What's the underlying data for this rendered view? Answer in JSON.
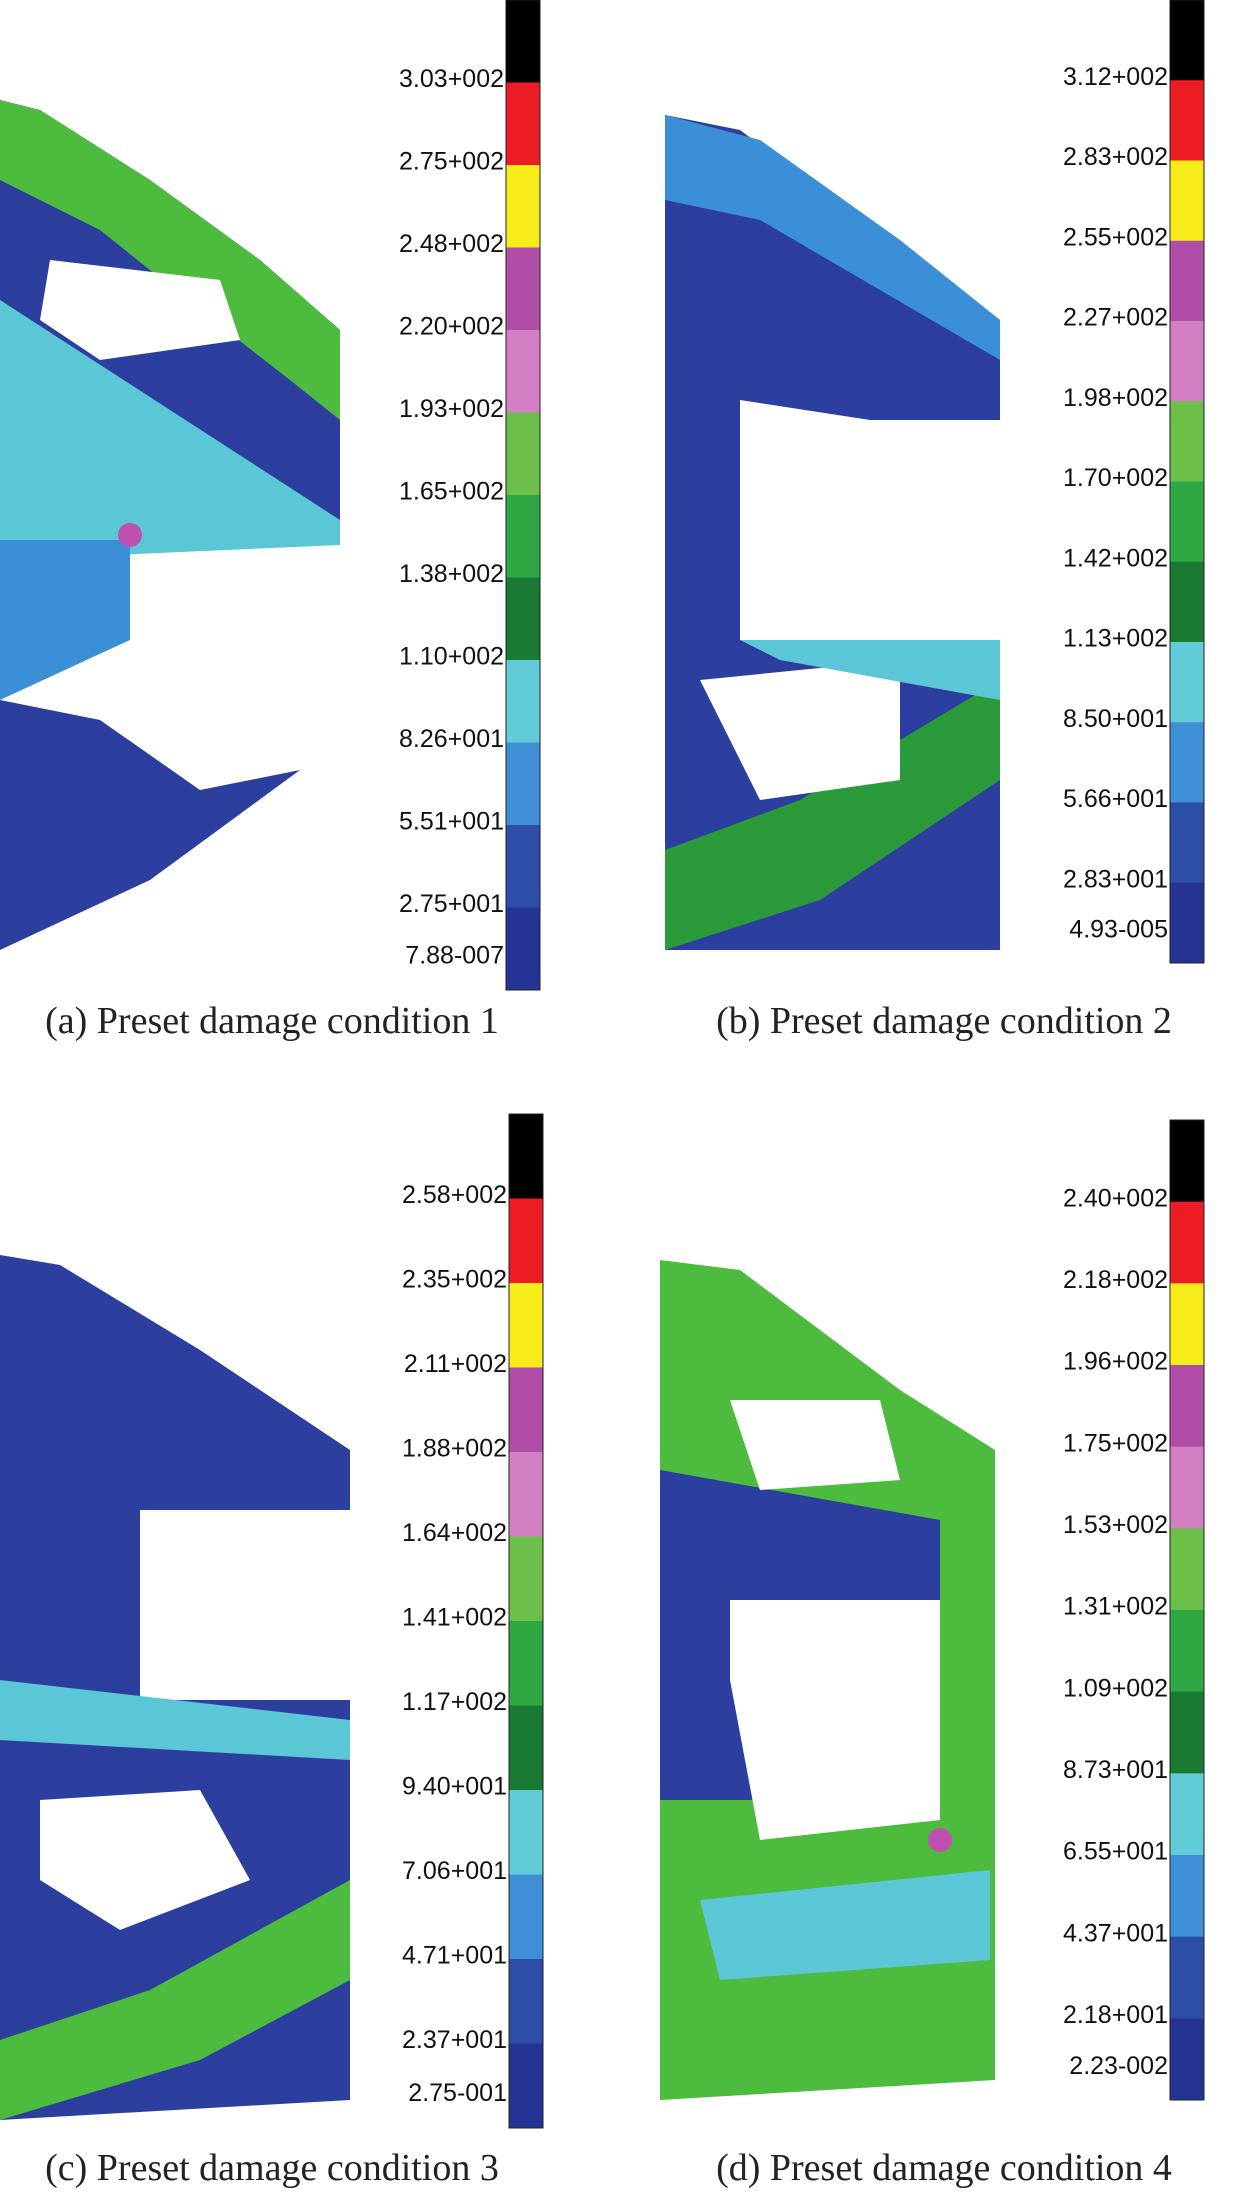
{
  "panels": [
    {
      "caption": "(a) Preset damage condition 1",
      "colorbar_labels": [
        "3.03+002",
        "2.75+002",
        "2.48+002",
        "2.20+002",
        "1.93+002",
        "1.65+002",
        "1.38+002",
        "1.10+002",
        "8.26+001",
        "5.51+001",
        "2.75+001",
        "7.88-007"
      ]
    },
    {
      "caption": "(b) Preset damage condition 2",
      "colorbar_labels": [
        "3.12+002",
        "2.83+002",
        "2.55+002",
        "2.27+002",
        "1.98+002",
        "1.70+002",
        "1.42+002",
        "1.13+002",
        "8.50+001",
        "5.66+001",
        "2.83+001",
        "4.93-005"
      ]
    },
    {
      "caption": "(c) Preset damage condition 3",
      "colorbar_labels": [
        "2.58+002",
        "2.35+002",
        "2.11+002",
        "1.88+002",
        "1.64+002",
        "1.41+002",
        "1.17+002",
        "9.40+001",
        "7.06+001",
        "4.71+001",
        "2.37+001",
        "2.75-001"
      ]
    },
    {
      "caption": "(d) Preset damage condition 4",
      "colorbar_labels": [
        "2.40+002",
        "2.18+002",
        "1.96+002",
        "1.75+002",
        "1.53+002",
        "1.31+002",
        "1.09+002",
        "8.73+001",
        "6.55+001",
        "4.37+001",
        "2.18+001",
        "2.23-002"
      ]
    }
  ]
}
